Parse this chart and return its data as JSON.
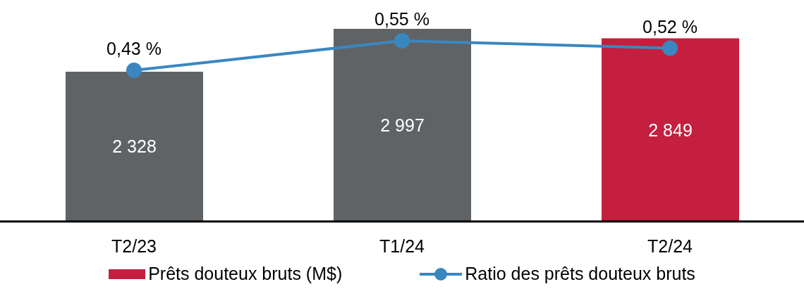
{
  "chart_data": {
    "type": "bar",
    "categories": [
      "T2/23",
      "T1/24",
      "T2/24"
    ],
    "series": [
      {
        "name": "Prêts douteux bruts (M$)",
        "color": "#c41f3e",
        "colors": [
          "#5f6366",
          "#5f6366",
          "#c41f3e"
        ],
        "values": [
          2328,
          2997,
          2849
        ],
        "value_labels": [
          "2 328",
          "2 997",
          "2 849"
        ]
      },
      {
        "name": "Ratio des prêts douteux bruts",
        "type": "line",
        "axis": "y2",
        "color": "#3a87c0",
        "values": [
          0.43,
          0.55,
          0.52
        ],
        "value_labels": [
          "0,43 %",
          "0,55 %",
          "0,52 %"
        ]
      }
    ],
    "legend": "bottom",
    "marker": "circle",
    "tick_labels": "x"
  }
}
